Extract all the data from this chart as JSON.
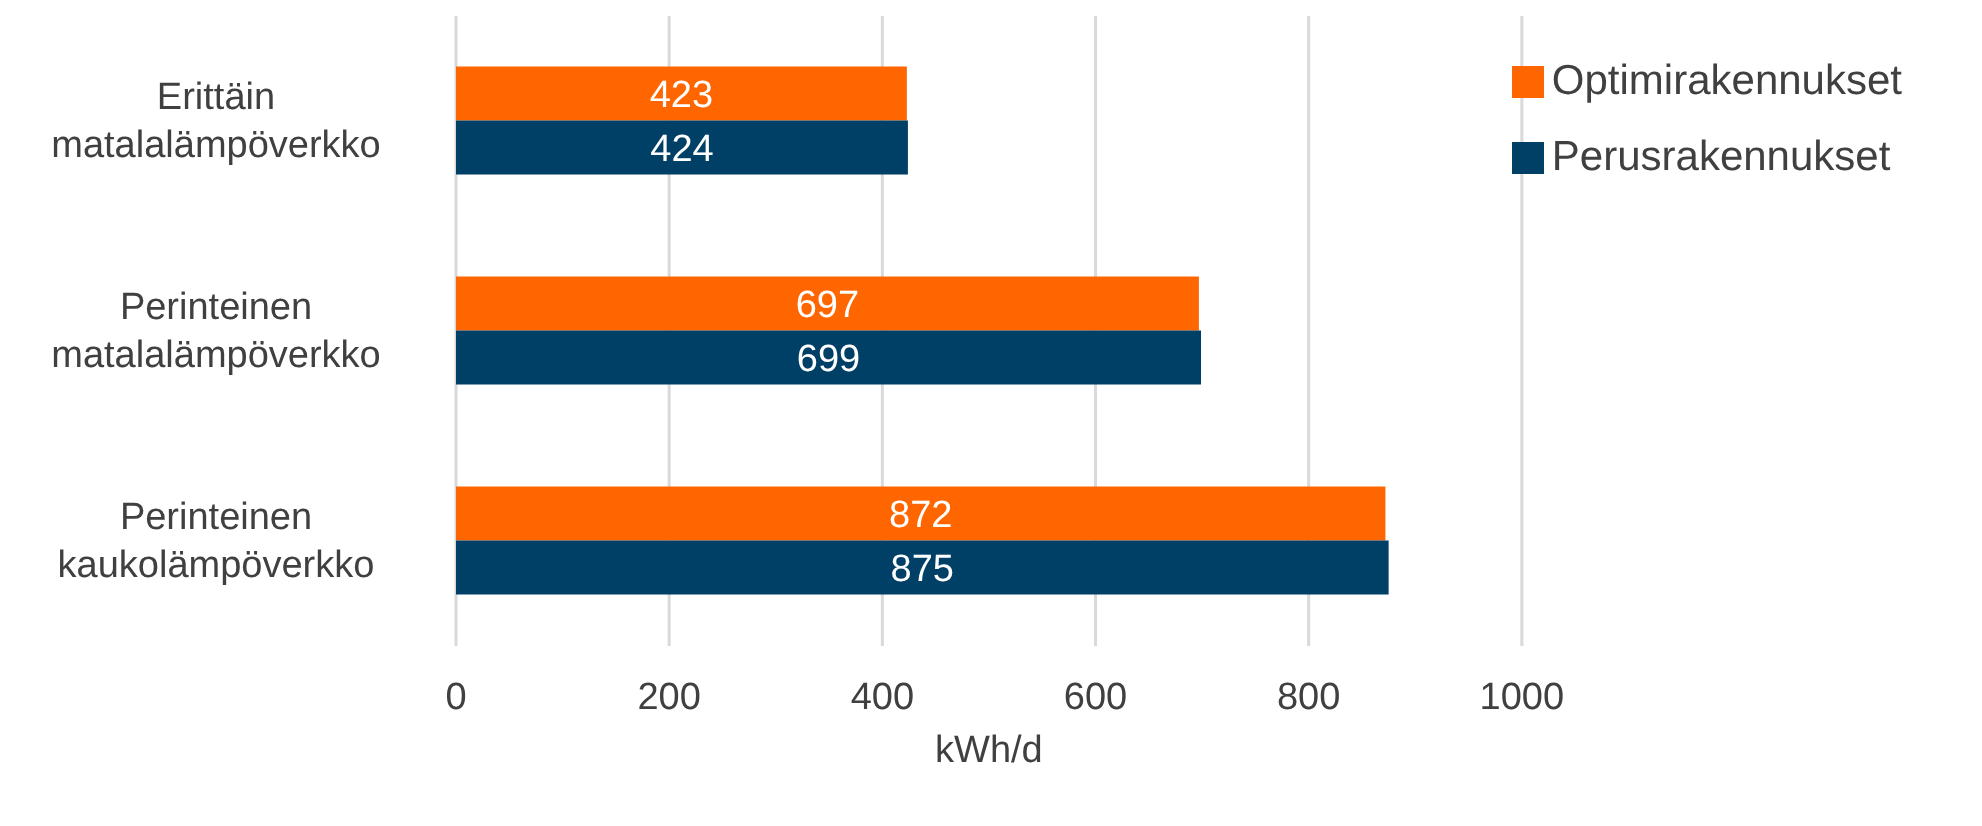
{
  "chart_data": {
    "type": "bar",
    "orientation": "horizontal",
    "xlabel": "kWh/d",
    "categories": [
      "Erittäin matalalämpöverkko",
      "Perinteinen matalalämpöverkko",
      "Perinteinen kaukolämpöverkko"
    ],
    "series": [
      {
        "name": "Optimirakennukset",
        "color": "#ff6600",
        "values": [
          423,
          697,
          872
        ]
      },
      {
        "name": "Perusrakennukset",
        "color": "#003f66",
        "values": [
          424,
          699,
          875
        ]
      }
    ],
    "xlim": [
      0,
      1000
    ],
    "xticks": [
      0,
      200,
      400,
      600,
      800,
      1000
    ],
    "grid": "x",
    "legend": "top right",
    "data_labels": true
  }
}
